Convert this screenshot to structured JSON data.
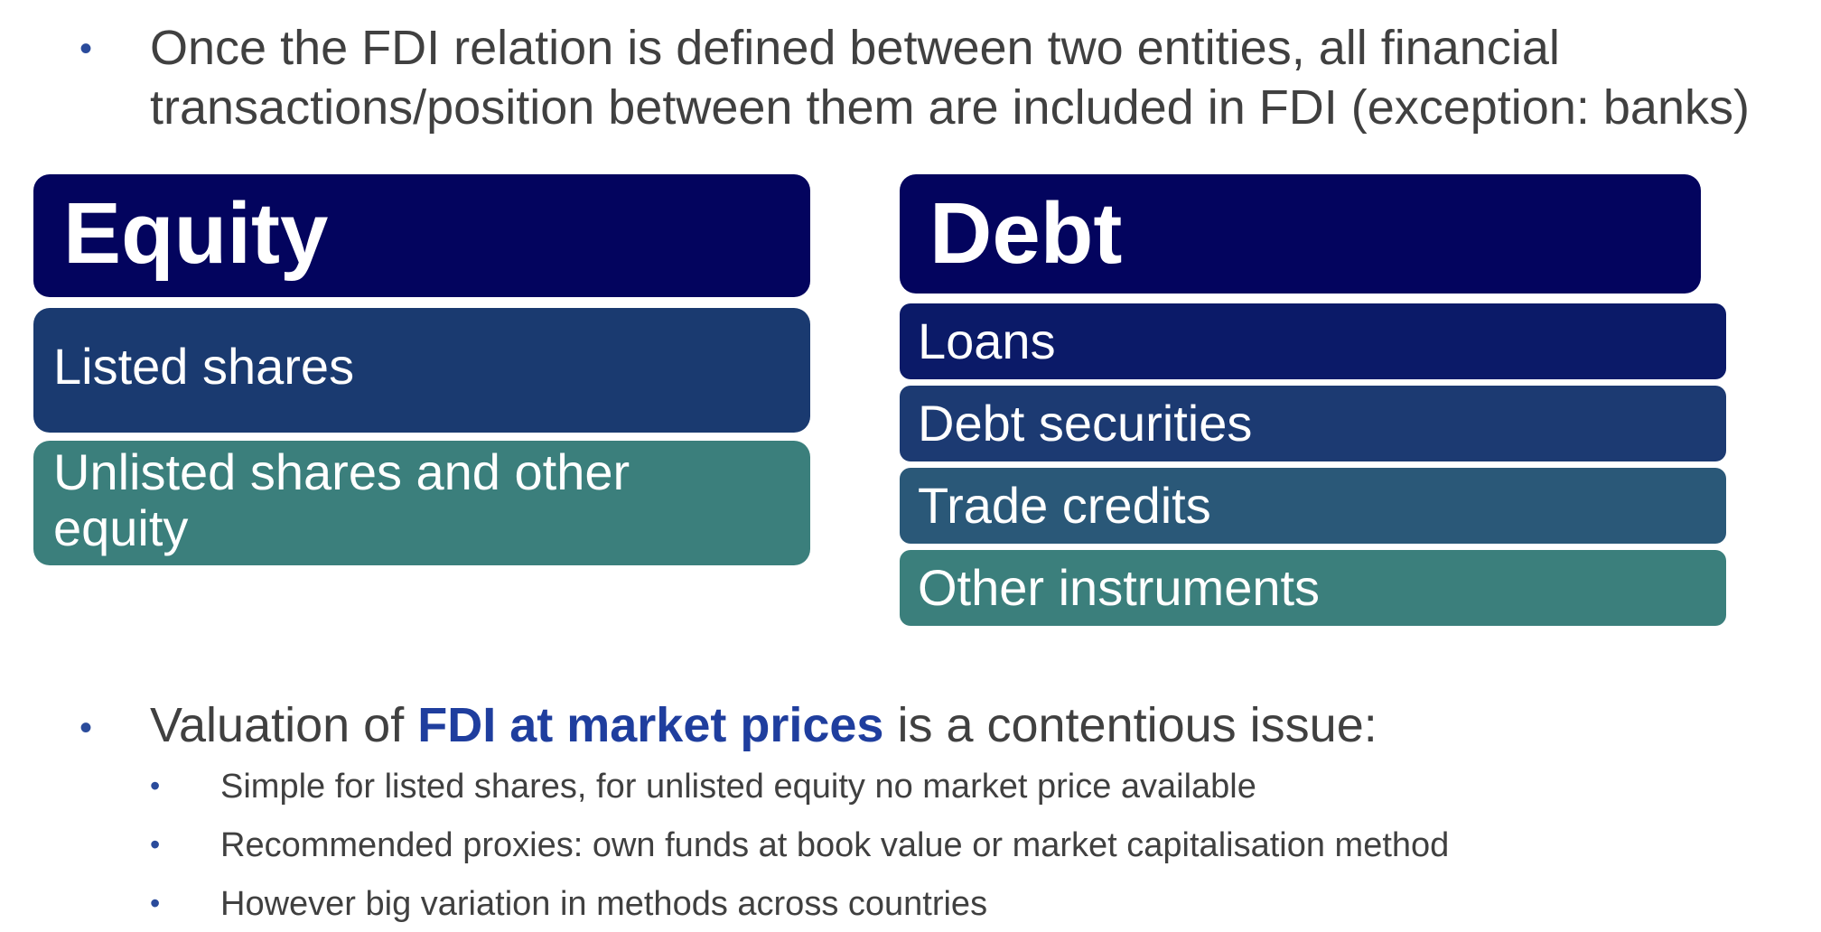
{
  "intro": {
    "bullet": "•",
    "line1": "Once the FDI relation is defined between two entities, all financial",
    "line2": "transactions/position between them are included in FDI (exception: banks)"
  },
  "equity": {
    "title": "Equity",
    "items": [
      "Listed shares",
      "Unlisted shares and other",
      "equity"
    ]
  },
  "debt": {
    "title": "Debt",
    "items": [
      "Loans",
      "Debt securities",
      "Trade credits",
      "Other instruments"
    ]
  },
  "valuation": {
    "bullet": "•",
    "prefix": "Valuation of ",
    "highlight": "FDI at market prices",
    "suffix": " is a contentious issue:",
    "sub_bullet": "•",
    "subpoints": [
      "Simple for listed shares, for unlisted equity no market price available",
      "Recommended proxies:  own funds at book value or market capitalisation method",
      "However big variation in methods across countries"
    ]
  },
  "colors": {
    "header_navy": "#03045e",
    "listed_blue": "#1a3a70",
    "teal": "#3b7f7c",
    "loans_navy": "#0b1a68",
    "securities_blue": "#1c3a72",
    "trade_blue": "#2a5878",
    "highlight_blue": "#1f3e9e",
    "bullet_blue": "#2a4b9b",
    "text_gray": "#404040"
  }
}
